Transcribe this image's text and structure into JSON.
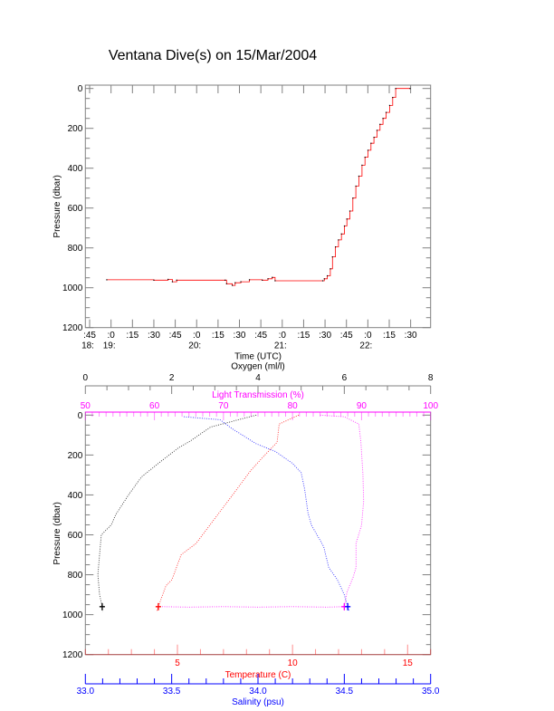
{
  "title": "Ventana Dive(s) on 15/Mar/2004",
  "colors": {
    "axis": "#808080",
    "text": "#000000",
    "red": "#ff0000",
    "blue": "#0000ff",
    "magenta": "#ff00ff",
    "black": "#000000"
  },
  "chart_data": [
    {
      "type": "line",
      "title": "Ventana Dive(s) on 15/Mar/2004",
      "xlabel": "Time (UTC)",
      "ylabel": "Pressure (dbar)",
      "x_units": "minutes after 18:00 UTC",
      "xlim": [
        42,
        284
      ],
      "ylim": [
        1200,
        -15
      ],
      "yticks": [
        "0",
        "200",
        "400",
        "600",
        "800",
        "1000",
        "1200"
      ],
      "xticks": [
        {
          "t": 45,
          "label": ":45",
          "hour": "18:"
        },
        {
          "t": 60,
          "label": ":0",
          "hour": "19:"
        },
        {
          "t": 75,
          "label": ":15",
          "hour": ""
        },
        {
          "t": 90,
          "label": ":30",
          "hour": ""
        },
        {
          "t": 105,
          "label": ":45",
          "hour": ""
        },
        {
          "t": 120,
          "label": ":0",
          "hour": "20:"
        },
        {
          "t": 135,
          "label": ":15",
          "hour": ""
        },
        {
          "t": 150,
          "label": ":30",
          "hour": ""
        },
        {
          "t": 165,
          "label": ":45",
          "hour": ""
        },
        {
          "t": 180,
          "label": ":0",
          "hour": "21:"
        },
        {
          "t": 195,
          "label": ":15",
          "hour": ""
        },
        {
          "t": 210,
          "label": ":30",
          "hour": ""
        },
        {
          "t": 225,
          "label": ":45",
          "hour": ""
        },
        {
          "t": 240,
          "label": ":0",
          "hour": "22:"
        },
        {
          "t": 255,
          "label": ":15",
          "hour": ""
        },
        {
          "t": 270,
          "label": ":30",
          "hour": ""
        }
      ],
      "series": [
        {
          "name": "Pressure",
          "color": "#ff0000",
          "step": true,
          "points": [
            [
              57,
              960
            ],
            [
              90,
              962
            ],
            [
              100,
              958
            ],
            [
              103,
              970
            ],
            [
              106,
              962
            ],
            [
              140,
              962
            ],
            [
              141,
              980
            ],
            [
              145,
              988
            ],
            [
              147,
              975
            ],
            [
              151,
              970
            ],
            [
              157,
              960
            ],
            [
              166,
              962
            ],
            [
              170,
              955
            ],
            [
              173,
              948
            ],
            [
              175,
              965
            ],
            [
              208.4,
              965
            ],
            [
              209.5,
              955
            ],
            [
              211.6,
              940
            ],
            [
              213.7,
              905
            ],
            [
              215.2,
              845
            ],
            [
              217.3,
              795
            ],
            [
              219.4,
              760
            ],
            [
              221.5,
              730
            ],
            [
              223.6,
              690
            ],
            [
              225.3,
              655
            ],
            [
              227.4,
              615
            ],
            [
              229.5,
              550
            ],
            [
              231.6,
              490
            ],
            [
              233.7,
              440
            ],
            [
              235.9,
              385
            ],
            [
              238,
              345
            ],
            [
              240.1,
              310
            ],
            [
              242.2,
              275
            ],
            [
              244.3,
              245
            ],
            [
              246.4,
              210
            ],
            [
              248.5,
              180
            ],
            [
              250.6,
              150
            ],
            [
              252.8,
              120
            ],
            [
              255.3,
              85
            ],
            [
              257.4,
              45
            ],
            [
              259.5,
              0
            ],
            [
              269.6,
              0
            ]
          ]
        }
      ]
    },
    {
      "type": "line",
      "ylabel": "Pressure (dbar)",
      "ylim": [
        1200,
        -15
      ],
      "yticks": [
        "0",
        "200",
        "400",
        "600",
        "800",
        "1000",
        "1200"
      ],
      "axes": [
        {
          "name": "Oxygen (ml/l)",
          "position": "top-outer",
          "color": "#000000",
          "range": [
            0,
            8
          ],
          "major": 2,
          "minor": 0.5,
          "ticklabels": [
            "0",
            "2",
            "4",
            "6",
            "8"
          ]
        },
        {
          "name": "Light Transmission (%)",
          "position": "top-inner",
          "color": "#ff00ff",
          "range": [
            50,
            100
          ],
          "major": 10,
          "minor": 1,
          "ticklabels": [
            "50",
            "60",
            "70",
            "80",
            "90",
            "100"
          ]
        },
        {
          "name": "Temperature (C)",
          "position": "bottom-inner",
          "color": "#ff0000",
          "range": [
            1,
            16
          ],
          "major": 5,
          "minor": 1,
          "ticklabels": [
            "5",
            "10",
            "15"
          ]
        },
        {
          "name": "Salinity (psu)",
          "position": "bottom-outer",
          "color": "#0000ff",
          "range": [
            33,
            35
          ],
          "major": 0.5,
          "minor": 0.1,
          "ticklabels": [
            "33.0",
            "33.5",
            "34.0",
            "34.5",
            "35.0"
          ]
        }
      ],
      "series": [
        {
          "name": "Oxygen",
          "axis": 0,
          "color": "#000000",
          "points": [
            [
              3.96,
              0
            ],
            [
              2.9,
              60
            ],
            [
              2.43,
              130
            ],
            [
              2.15,
              165
            ],
            [
              1.73,
              235
            ],
            [
              1.3,
              310
            ],
            [
              1.0,
              400
            ],
            [
              0.7,
              500
            ],
            [
              0.6,
              550
            ],
            [
              0.37,
              600
            ],
            [
              0.33,
              700
            ],
            [
              0.29,
              800
            ],
            [
              0.33,
              900
            ],
            [
              0.39,
              960
            ],
            [
              0.4,
              985
            ]
          ]
        },
        {
          "name": "Light Transmission",
          "axis": 1,
          "color": "#ff00ff",
          "points": [
            [
              84,
              0
            ],
            [
              87.5,
              8
            ],
            [
              89.6,
              45
            ],
            [
              89.9,
              136
            ],
            [
              90.2,
              295
            ],
            [
              90.3,
              431
            ],
            [
              90.0,
              552
            ],
            [
              89.2,
              643
            ],
            [
              89.2,
              764
            ],
            [
              88.8,
              810
            ],
            [
              87.9,
              885
            ],
            [
              87.5,
              960
            ],
            [
              85,
              962
            ],
            [
              80,
              960
            ],
            [
              75,
              962
            ],
            [
              70,
              960
            ],
            [
              65,
              962
            ],
            [
              61,
              960
            ]
          ]
        },
        {
          "name": "Temperature",
          "axis": 2,
          "color": "#ff0000",
          "points": [
            [
              10.27,
              0
            ],
            [
              9.42,
              45
            ],
            [
              9.33,
              136
            ],
            [
              8.7,
              212
            ],
            [
              8.17,
              280
            ],
            [
              7.39,
              401
            ],
            [
              6.6,
              522
            ],
            [
              5.81,
              643
            ],
            [
              5.16,
              700
            ],
            [
              4.76,
              825
            ],
            [
              4.5,
              855
            ],
            [
              4.17,
              960
            ],
            [
              4.1,
              985
            ]
          ]
        },
        {
          "name": "Salinity",
          "axis": 3,
          "color": "#0000ff",
          "points": [
            [
              33.57,
              8
            ],
            [
              33.78,
              23
            ],
            [
              33.85,
              68
            ],
            [
              33.99,
              144
            ],
            [
              34.1,
              182
            ],
            [
              34.2,
              242
            ],
            [
              34.25,
              288
            ],
            [
              34.27,
              371
            ],
            [
              34.29,
              492
            ],
            [
              34.31,
              552
            ],
            [
              34.38,
              658
            ],
            [
              34.41,
              764
            ],
            [
              34.46,
              825
            ],
            [
              34.5,
              900
            ],
            [
              34.52,
              960
            ],
            [
              34.53,
              985
            ]
          ]
        }
      ]
    }
  ]
}
